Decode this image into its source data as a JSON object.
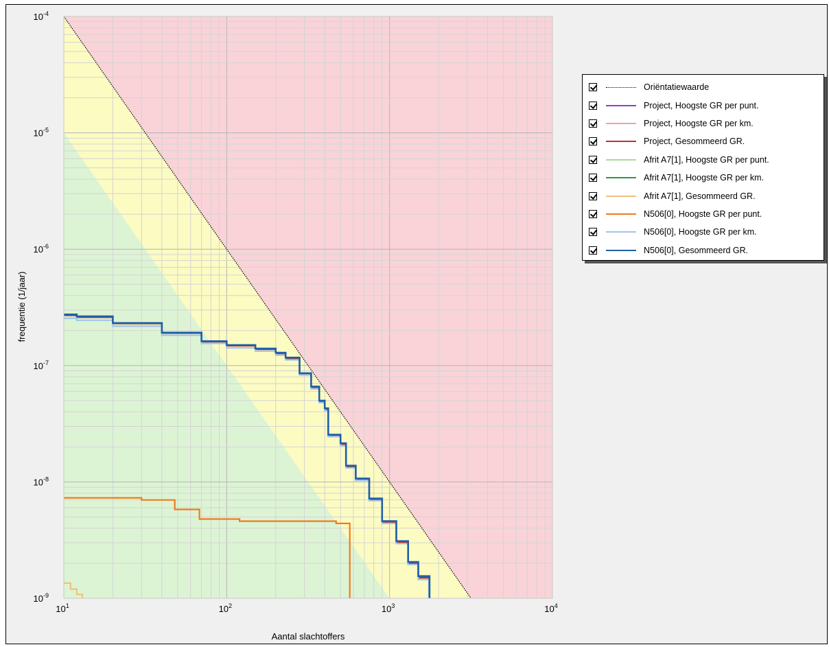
{
  "chart_data": {
    "type": "line",
    "title": "",
    "xlabel": "Aantal slachtoffers",
    "ylabel": "frequentie (1/jaar)",
    "xscale": "log",
    "yscale": "log",
    "xlim": [
      10,
      10000
    ],
    "ylim": [
      1e-09,
      0.0001
    ],
    "grid": true,
    "legend_position": "top-right, outside plot",
    "x_ticks": [
      {
        "base": "10",
        "exp": "1"
      },
      {
        "base": "10",
        "exp": "2"
      },
      {
        "base": "10",
        "exp": "3"
      },
      {
        "base": "10",
        "exp": "4"
      }
    ],
    "y_ticks": [
      {
        "base": "10",
        "exp": "-4"
      },
      {
        "base": "10",
        "exp": "-5"
      },
      {
        "base": "10",
        "exp": "-6"
      },
      {
        "base": "10",
        "exp": "-7"
      },
      {
        "base": "10",
        "exp": "-8"
      },
      {
        "base": "10",
        "exp": "-9"
      }
    ],
    "background_zones": [
      {
        "name": "red",
        "color": "#f9d3d8"
      },
      {
        "name": "yellow",
        "color": "#fcfbc2"
      },
      {
        "name": "green",
        "color": "#dcf4d4"
      }
    ],
    "series": [
      {
        "name": "Oriëntatiewaarde",
        "color": "#000000",
        "style": "dotted",
        "points": [
          [
            10,
            0.0001
          ],
          [
            3162,
            1e-09
          ]
        ]
      },
      {
        "name": "Project, Hoogste GR per punt.",
        "color": "#8a3fc8",
        "style": "solid",
        "points": []
      },
      {
        "name": "Project, Hoogste GR per km.",
        "color": "#f0a0a6",
        "style": "solid",
        "points": []
      },
      {
        "name": "Project, Gesommeerd GR.",
        "color": "#c0302a",
        "style": "solid",
        "points": [
          [
            10,
            2.7e-07
          ],
          [
            12,
            2.6e-07
          ],
          [
            20,
            2.3e-07
          ],
          [
            40,
            1.9e-07
          ],
          [
            70,
            1.6e-07
          ],
          [
            100,
            1.48e-07
          ],
          [
            150,
            1.38e-07
          ],
          [
            200,
            1.27e-07
          ],
          [
            230,
            1.15e-07
          ],
          [
            280,
            8.5e-08
          ],
          [
            330,
            6.5e-08
          ],
          [
            370,
            4.9e-08
          ],
          [
            400,
            4.2e-08
          ],
          [
            420,
            2.5e-08
          ],
          [
            500,
            2.1e-08
          ],
          [
            540,
            1.35e-08
          ],
          [
            620,
            1.05e-08
          ],
          [
            750,
            7e-09
          ],
          [
            900,
            4.5e-09
          ],
          [
            1100,
            3e-09
          ],
          [
            1300,
            2e-09
          ],
          [
            1500,
            1.5e-09
          ],
          [
            1750,
            1e-09
          ]
        ]
      },
      {
        "name": "Afrit A7[1], Hoogste GR per punt.",
        "color": "#a7dd9a",
        "style": "solid",
        "points": []
      },
      {
        "name": "Afrit A7[1], Hoogste GR per km.",
        "color": "#2e9a3a",
        "style": "solid",
        "points": []
      },
      {
        "name": "Afrit A7[1], Gesommeerd GR.",
        "color": "#f1c27e",
        "style": "solid",
        "points": [
          [
            10,
            1.35e-09
          ],
          [
            11,
            1.2e-09
          ],
          [
            12,
            1.08e-09
          ],
          [
            13,
            1e-09
          ]
        ]
      },
      {
        "name": "N506[0], Hoogste GR per punt.",
        "color": "#f07a20",
        "style": "solid",
        "points": [
          [
            10,
            7.3e-09
          ],
          [
            30,
            7e-09
          ],
          [
            48,
            5.8e-09
          ],
          [
            68,
            4.8e-09
          ],
          [
            120,
            4.6e-09
          ],
          [
            470,
            4.4e-09
          ],
          [
            570,
            4e-09
          ],
          [
            570,
            1e-09
          ]
        ]
      },
      {
        "name": "N506[0], Hoogste GR per km.",
        "color": "#9fc6ea",
        "style": "solid",
        "points": [
          [
            10,
            2.55e-07
          ],
          [
            12,
            2.45e-07
          ],
          [
            20,
            2.18e-07
          ],
          [
            40,
            1.82e-07
          ],
          [
            70,
            1.55e-07
          ],
          [
            100,
            1.42e-07
          ],
          [
            150,
            1.33e-07
          ],
          [
            200,
            1.23e-07
          ],
          [
            230,
            1.12e-07
          ],
          [
            280,
            8.3e-08
          ],
          [
            330,
            6.3e-08
          ],
          [
            370,
            4.8e-08
          ],
          [
            400,
            4.1e-08
          ],
          [
            420,
            2.45e-08
          ],
          [
            500,
            2.05e-08
          ],
          [
            540,
            1.32e-08
          ],
          [
            620,
            1.03e-08
          ],
          [
            750,
            6.9e-09
          ],
          [
            900,
            4.4e-09
          ],
          [
            1100,
            2.95e-09
          ],
          [
            1300,
            1.95e-09
          ],
          [
            1500,
            1.45e-09
          ],
          [
            1740,
            1e-09
          ]
        ]
      },
      {
        "name": "N506[0], Gesommeerd GR.",
        "color": "#1f5fa8",
        "style": "solid",
        "points": [
          [
            10,
            2.75e-07
          ],
          [
            12,
            2.65e-07
          ],
          [
            20,
            2.32e-07
          ],
          [
            40,
            1.92e-07
          ],
          [
            70,
            1.62e-07
          ],
          [
            100,
            1.5e-07
          ],
          [
            150,
            1.4e-07
          ],
          [
            200,
            1.29e-07
          ],
          [
            230,
            1.17e-07
          ],
          [
            280,
            8.6e-08
          ],
          [
            330,
            6.6e-08
          ],
          [
            370,
            5e-08
          ],
          [
            400,
            4.3e-08
          ],
          [
            420,
            2.55e-08
          ],
          [
            500,
            2.15e-08
          ],
          [
            540,
            1.38e-08
          ],
          [
            620,
            1.07e-08
          ],
          [
            750,
            7.2e-09
          ],
          [
            900,
            4.6e-09
          ],
          [
            1100,
            3.1e-09
          ],
          [
            1300,
            2.05e-09
          ],
          [
            1500,
            1.55e-09
          ],
          [
            1760,
            1e-09
          ]
        ]
      }
    ]
  }
}
